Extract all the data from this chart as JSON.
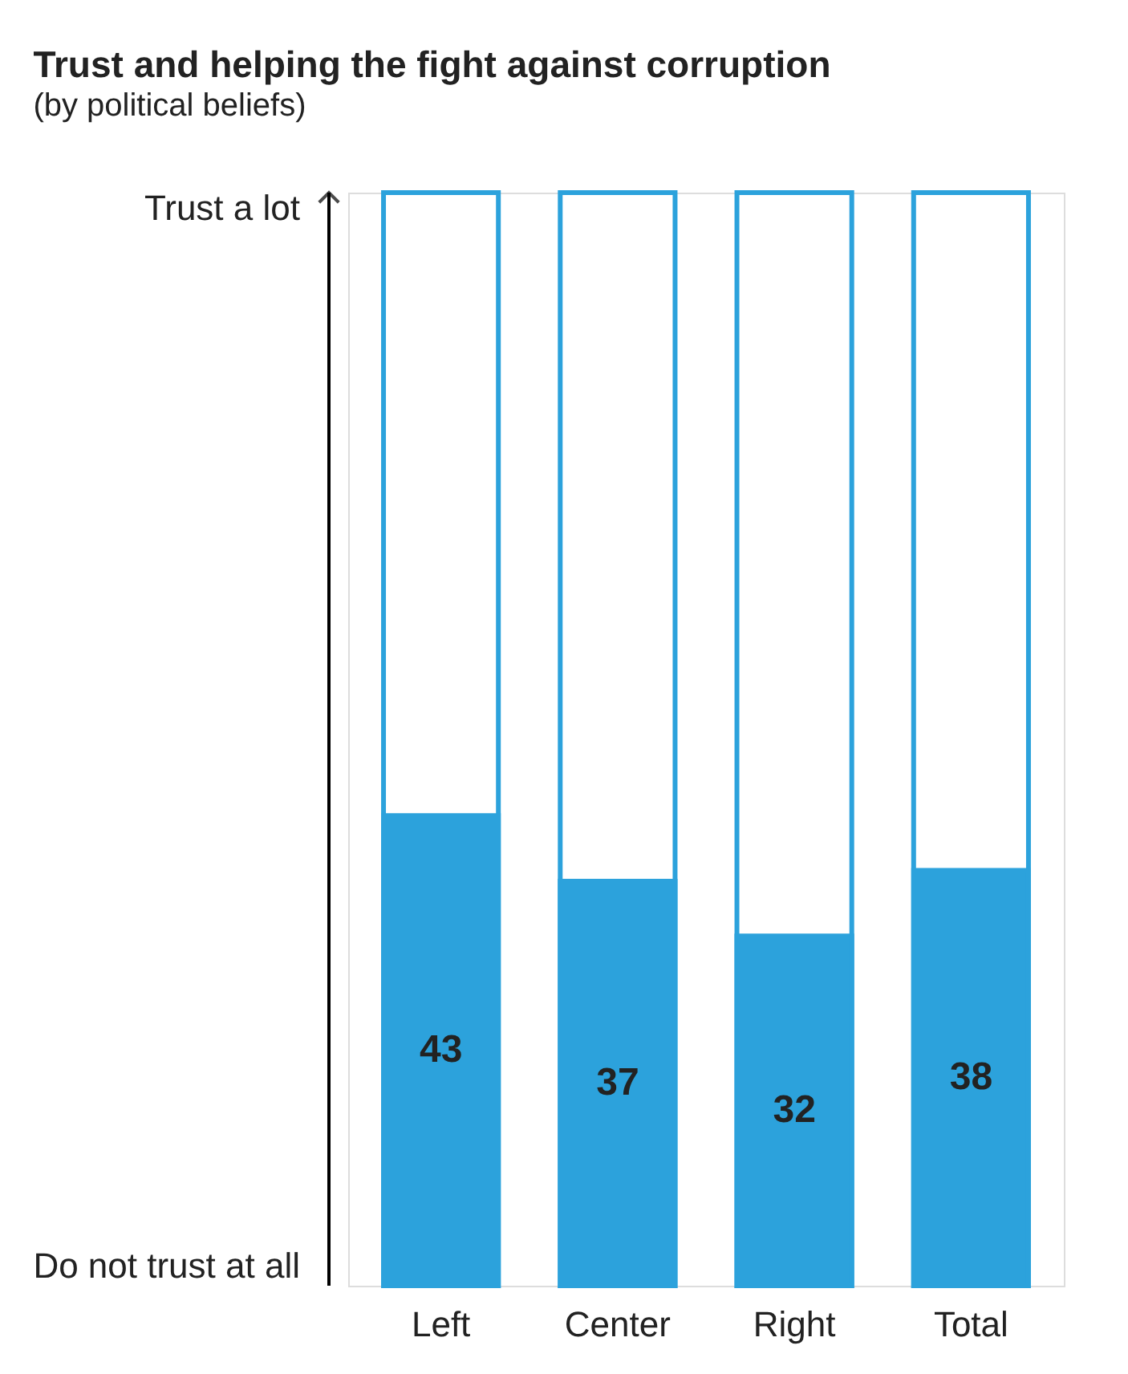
{
  "chart_data": {
    "type": "bar",
    "title": "Trust and helping the fight against corruption",
    "subtitle": "(by political beliefs)",
    "categories": [
      "Left",
      "Center",
      "Right",
      "Total"
    ],
    "color": "#2ca2dc",
    "values": [
      43,
      37,
      32,
      38
    ],
    "data_labels": true,
    "ylim": [
      0,
      100
    ],
    "annotations": [
      "Trust a lot",
      "Do not trust at all"
    ]
  }
}
